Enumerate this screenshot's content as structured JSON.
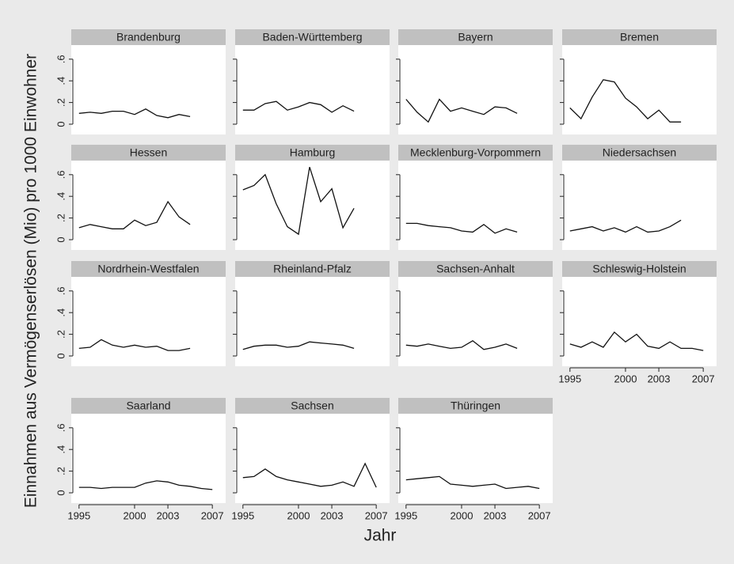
{
  "x_label": "Jahr",
  "y_label": "Einnahmen aus Vermögenserlösen (Mio) pro 1000 Einwohner",
  "xlim": [
    1994.3,
    2008.2
  ],
  "xticks": [
    1995,
    2000,
    2003,
    2007
  ],
  "ylim": [
    -0.095,
    0.73
  ],
  "yticks": [
    0,
    {
      "value": 0.2,
      "label": ".2"
    },
    {
      "value": 0.4,
      "label": ".4"
    },
    {
      "value": 0.6,
      "label": ".6"
    }
  ],
  "color": "#111111",
  "chart_data": [
    {
      "type": "line",
      "title": "Brandenburg",
      "x": [
        1995,
        1996,
        1997,
        1998,
        1999,
        2000,
        2001,
        2002,
        2003,
        2004,
        2005
      ],
      "values": [
        0.1,
        0.11,
        0.1,
        0.12,
        0.12,
        0.09,
        0.14,
        0.08,
        0.06,
        0.09,
        0.07
      ]
    },
    {
      "type": "line",
      "title": "Baden-Württemberg",
      "x": [
        1995,
        1996,
        1997,
        1998,
        1999,
        2000,
        2001,
        2002,
        2003,
        2004,
        2005
      ],
      "values": [
        0.13,
        0.13,
        0.19,
        0.21,
        0.13,
        0.16,
        0.2,
        0.18,
        0.11,
        0.17,
        0.12
      ]
    },
    {
      "type": "line",
      "title": "Bayern",
      "x": [
        1995,
        1996,
        1997,
        1998,
        1999,
        2000,
        2001,
        2002,
        2003,
        2004,
        2005
      ],
      "values": [
        0.23,
        0.11,
        0.02,
        0.23,
        0.12,
        0.15,
        0.12,
        0.09,
        0.16,
        0.15,
        0.1
      ]
    },
    {
      "type": "line",
      "title": "Bremen",
      "x": [
        1995,
        1996,
        1997,
        1998,
        1999,
        2000,
        2001,
        2002,
        2003,
        2004,
        2005
      ],
      "values": [
        0.15,
        0.05,
        0.25,
        0.41,
        0.39,
        0.24,
        0.16,
        0.05,
        0.13,
        0.02,
        0.02
      ]
    },
    {
      "type": "line",
      "title": "Hessen",
      "x": [
        1995,
        1996,
        1997,
        1998,
        1999,
        2000,
        2001,
        2002,
        2003,
        2004,
        2005
      ],
      "values": [
        0.11,
        0.14,
        0.12,
        0.1,
        0.1,
        0.18,
        0.13,
        0.16,
        0.35,
        0.21,
        0.14
      ]
    },
    {
      "type": "line",
      "title": "Hamburg",
      "x": [
        1995,
        1996,
        1997,
        1998,
        1999,
        2000,
        2001,
        2002,
        2003,
        2004,
        2005
      ],
      "values": [
        0.46,
        0.5,
        0.6,
        0.33,
        0.12,
        0.05,
        0.67,
        0.35,
        0.47,
        0.11,
        0.29
      ]
    },
    {
      "type": "line",
      "title": "Mecklenburg-Vorpommern",
      "x": [
        1995,
        1996,
        1997,
        1998,
        1999,
        2000,
        2001,
        2002,
        2003,
        2004,
        2005
      ],
      "values": [
        0.15,
        0.15,
        0.13,
        0.12,
        0.11,
        0.08,
        0.07,
        0.14,
        0.06,
        0.1,
        0.07
      ]
    },
    {
      "type": "line",
      "title": "Niedersachsen",
      "x": [
        1995,
        1996,
        1997,
        1998,
        1999,
        2000,
        2001,
        2002,
        2003,
        2004,
        2005
      ],
      "values": [
        0.08,
        0.1,
        0.12,
        0.08,
        0.11,
        0.07,
        0.12,
        0.07,
        0.08,
        0.12,
        0.18
      ]
    },
    {
      "type": "line",
      "title": "Nordrhein-Westfalen",
      "x": [
        1995,
        1996,
        1997,
        1998,
        1999,
        2000,
        2001,
        2002,
        2003,
        2004,
        2005
      ],
      "values": [
        0.07,
        0.08,
        0.15,
        0.1,
        0.08,
        0.1,
        0.08,
        0.09,
        0.05,
        0.05,
        0.07
      ]
    },
    {
      "type": "line",
      "title": "Rheinland-Pfalz",
      "x": [
        1995,
        1996,
        1997,
        1998,
        1999,
        2000,
        2001,
        2002,
        2003,
        2004,
        2005
      ],
      "values": [
        0.06,
        0.09,
        0.1,
        0.1,
        0.08,
        0.09,
        0.13,
        0.12,
        0.11,
        0.1,
        0.07
      ]
    },
    {
      "type": "line",
      "title": "Sachsen-Anhalt",
      "x": [
        1995,
        1996,
        1997,
        1998,
        1999,
        2000,
        2001,
        2002,
        2003,
        2004,
        2005
      ],
      "values": [
        0.1,
        0.09,
        0.11,
        0.09,
        0.07,
        0.08,
        0.14,
        0.06,
        0.08,
        0.11,
        0.07
      ]
    },
    {
      "type": "line",
      "title": "Schleswig-Holstein",
      "x": [
        1995,
        1996,
        1997,
        1998,
        1999,
        2000,
        2001,
        2002,
        2003,
        2004,
        2005,
        2006,
        2007
      ],
      "values": [
        0.11,
        0.08,
        0.13,
        0.08,
        0.22,
        0.13,
        0.2,
        0.09,
        0.07,
        0.13,
        0.07,
        0.07,
        0.05
      ]
    },
    {
      "type": "line",
      "title": "Saarland",
      "x": [
        1995,
        1996,
        1997,
        1998,
        1999,
        2000,
        2001,
        2002,
        2003,
        2004,
        2005,
        2006,
        2007
      ],
      "values": [
        0.05,
        0.05,
        0.04,
        0.05,
        0.05,
        0.05,
        0.09,
        0.11,
        0.1,
        0.07,
        0.06,
        0.04,
        0.03
      ]
    },
    {
      "type": "line",
      "title": "Sachsen",
      "x": [
        1995,
        1996,
        1997,
        1998,
        1999,
        2000,
        2001,
        2002,
        2003,
        2004,
        2005,
        2006,
        2007
      ],
      "values": [
        0.14,
        0.15,
        0.22,
        0.15,
        0.12,
        0.1,
        0.08,
        0.06,
        0.07,
        0.1,
        0.06,
        0.27,
        0.05
      ]
    },
    {
      "type": "line",
      "title": "Thüringen",
      "x": [
        1995,
        1996,
        1997,
        1998,
        1999,
        2000,
        2001,
        2002,
        2003,
        2004,
        2005,
        2006,
        2007
      ],
      "values": [
        0.12,
        0.13,
        0.14,
        0.15,
        0.08,
        0.07,
        0.06,
        0.07,
        0.08,
        0.04,
        0.05,
        0.06,
        0.04
      ]
    }
  ]
}
